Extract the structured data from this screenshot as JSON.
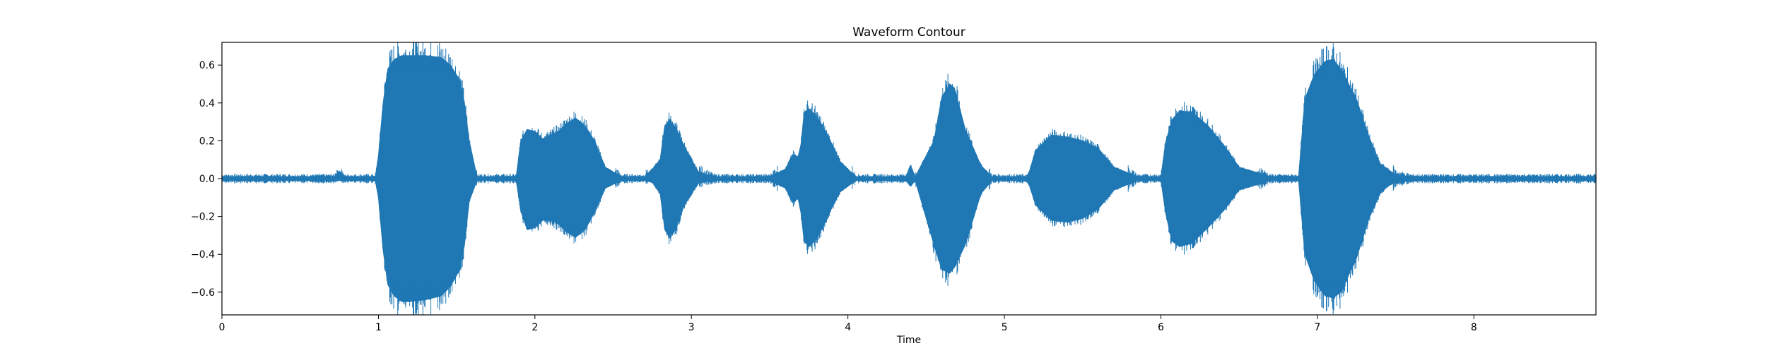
{
  "chart_data": {
    "type": "area",
    "title": "Waveform Contour",
    "xlabel": "Time",
    "ylabel": "",
    "xlim": [
      0,
      8.78
    ],
    "ylim": [
      -0.72,
      0.72
    ],
    "x_ticks": [
      0,
      1,
      2,
      3,
      4,
      5,
      6,
      7,
      8
    ],
    "y_ticks": [
      0.6,
      0.4,
      0.2,
      0.0,
      -0.2,
      -0.4,
      -0.6
    ],
    "x_tick_labels": [
      "0",
      "1",
      "2",
      "3",
      "4",
      "5",
      "6",
      "7",
      "8"
    ],
    "y_tick_labels": [
      "0.6",
      "0.4",
      "0.2",
      "0.0",
      "−0.2",
      "−0.4",
      "−0.6"
    ],
    "grid": false,
    "color": "#1f77b4",
    "series": [
      {
        "x": [
          0.0,
          0.2,
          0.5,
          0.72,
          0.75,
          0.78,
          0.98,
          1.0,
          1.03,
          1.06,
          1.1,
          1.15,
          1.2,
          1.3,
          1.4,
          1.46,
          1.52,
          1.55,
          1.58,
          1.63,
          1.8,
          1.88,
          1.91,
          1.95,
          2.0,
          2.05,
          2.1,
          2.15,
          2.2,
          2.26,
          2.32,
          2.38,
          2.45,
          2.55,
          2.7,
          2.75,
          2.8,
          2.83,
          2.86,
          2.9,
          2.95,
          3.0,
          3.05,
          3.15,
          3.3,
          3.5,
          3.6,
          3.65,
          3.68,
          3.7,
          3.72,
          3.75,
          3.8,
          3.85,
          3.9,
          3.95,
          4.05,
          4.2,
          4.37,
          4.4,
          4.43,
          4.55,
          4.6,
          4.65,
          4.68,
          4.75,
          4.85,
          4.92,
          5.0,
          5.1,
          5.15,
          5.2,
          5.3,
          5.4,
          5.5,
          5.6,
          5.7,
          5.85,
          6.0,
          6.03,
          6.07,
          6.12,
          6.2,
          6.3,
          6.4,
          6.5,
          6.7,
          6.88,
          6.92,
          6.98,
          7.05,
          7.1,
          7.15,
          7.25,
          7.33,
          7.4,
          7.45,
          7.5,
          7.6,
          7.8,
          8.2,
          8.78
        ],
        "upper": [
          0.01,
          0.01,
          0.01,
          0.01,
          0.04,
          0.01,
          0.01,
          0.12,
          0.4,
          0.58,
          0.63,
          0.65,
          0.65,
          0.65,
          0.64,
          0.6,
          0.52,
          0.4,
          0.2,
          0.01,
          0.01,
          0.01,
          0.2,
          0.26,
          0.25,
          0.21,
          0.23,
          0.25,
          0.29,
          0.32,
          0.28,
          0.2,
          0.06,
          0.01,
          0.01,
          0.05,
          0.1,
          0.28,
          0.31,
          0.27,
          0.18,
          0.1,
          0.03,
          0.01,
          0.01,
          0.01,
          0.05,
          0.13,
          0.11,
          0.18,
          0.35,
          0.37,
          0.33,
          0.26,
          0.18,
          0.09,
          0.01,
          0.01,
          0.01,
          0.07,
          0.01,
          0.2,
          0.43,
          0.5,
          0.48,
          0.26,
          0.07,
          0.01,
          0.01,
          0.01,
          0.01,
          0.15,
          0.23,
          0.22,
          0.2,
          0.16,
          0.06,
          0.01,
          0.01,
          0.19,
          0.31,
          0.36,
          0.35,
          0.28,
          0.18,
          0.06,
          0.01,
          0.01,
          0.42,
          0.55,
          0.62,
          0.63,
          0.58,
          0.42,
          0.22,
          0.08,
          0.05,
          0.02,
          0.01,
          0.01,
          0.01,
          0.01
        ],
        "lower": [
          -0.01,
          -0.01,
          -0.01,
          -0.01,
          -0.01,
          -0.01,
          -0.01,
          -0.1,
          -0.38,
          -0.56,
          -0.62,
          -0.65,
          -0.65,
          -0.64,
          -0.62,
          -0.57,
          -0.48,
          -0.35,
          -0.12,
          -0.01,
          -0.01,
          -0.01,
          -0.17,
          -0.27,
          -0.26,
          -0.22,
          -0.22,
          -0.24,
          -0.28,
          -0.31,
          -0.27,
          -0.18,
          -0.05,
          -0.01,
          -0.01,
          -0.02,
          -0.08,
          -0.27,
          -0.31,
          -0.27,
          -0.15,
          -0.08,
          -0.02,
          -0.01,
          -0.01,
          -0.01,
          -0.05,
          -0.13,
          -0.1,
          -0.18,
          -0.33,
          -0.36,
          -0.32,
          -0.24,
          -0.15,
          -0.07,
          -0.01,
          -0.01,
          -0.01,
          -0.04,
          -0.01,
          -0.35,
          -0.48,
          -0.5,
          -0.47,
          -0.35,
          -0.08,
          -0.01,
          -0.01,
          -0.01,
          -0.01,
          -0.14,
          -0.22,
          -0.23,
          -0.21,
          -0.16,
          -0.06,
          -0.01,
          -0.01,
          -0.18,
          -0.33,
          -0.36,
          -0.34,
          -0.26,
          -0.17,
          -0.06,
          -0.01,
          -0.01,
          -0.4,
          -0.54,
          -0.62,
          -0.63,
          -0.6,
          -0.42,
          -0.21,
          -0.08,
          -0.04,
          -0.02,
          -0.01,
          -0.01,
          -0.01,
          -0.01
        ]
      }
    ]
  }
}
